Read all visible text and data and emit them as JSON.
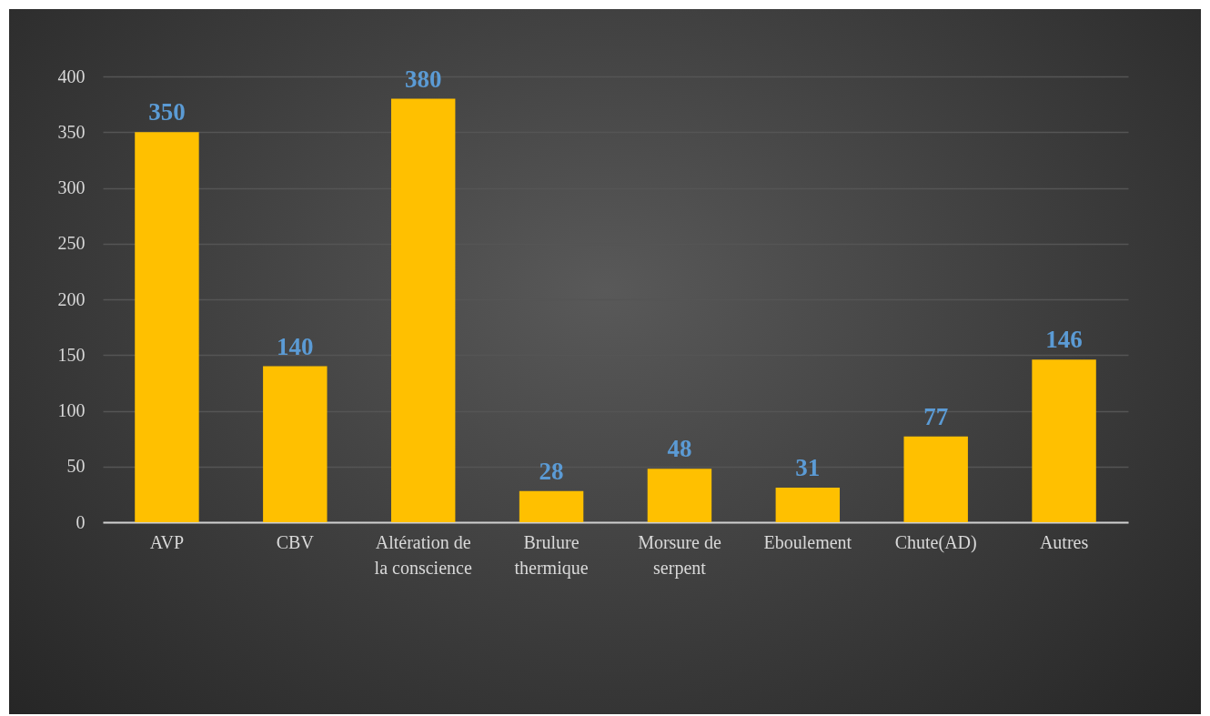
{
  "chart_data": {
    "type": "bar",
    "categories": [
      "AVP",
      "CBV",
      "Altération de la conscience",
      "Brulure thermique",
      "Morsure de serpent",
      "Eboulement",
      "Chute(AD)",
      "Autres"
    ],
    "values": [
      350,
      140,
      380,
      28,
      48,
      31,
      77,
      146
    ],
    "color": "#ffc000",
    "ylim": [
      0,
      400
    ],
    "yticks": [
      0,
      50,
      100,
      150,
      200,
      250,
      300,
      350,
      400
    ],
    "grid": "y",
    "data_labels": true
  }
}
